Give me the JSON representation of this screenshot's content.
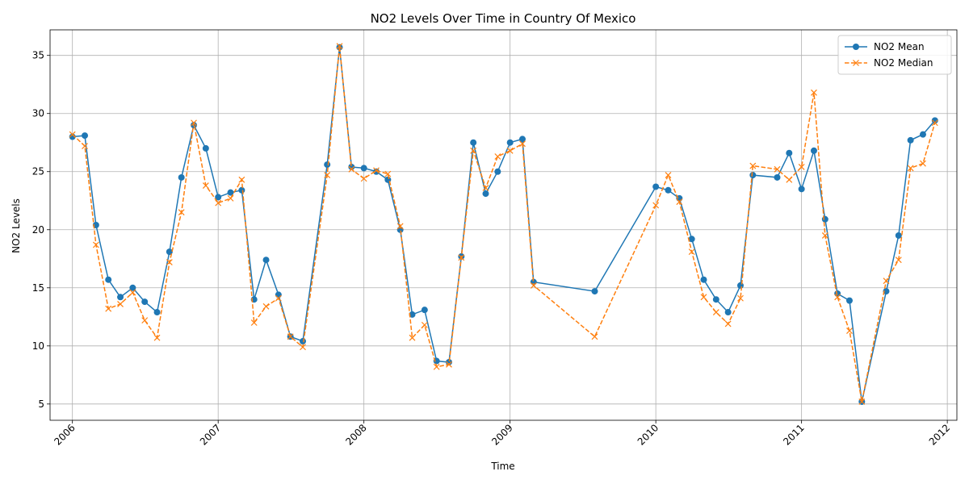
{
  "chart_data": {
    "type": "line",
    "title": "NO2 Levels Over Time in Country Of Mexico",
    "xlabel": "Time",
    "ylabel": "NO2 Levels",
    "xlim": [
      "2005-11-06",
      "2012-01-25"
    ],
    "ylim": [
      3.6,
      37.2
    ],
    "x_ticks": [
      "2006",
      "2007",
      "2008",
      "2009",
      "2010",
      "2011",
      "2012"
    ],
    "y_ticks": [
      5,
      10,
      15,
      20,
      25,
      30,
      35
    ],
    "grid": true,
    "legend_position": "top-right",
    "colors": {
      "mean": "#1f77b4",
      "median": "#ff7f0e"
    },
    "x": [
      "2006-01-01",
      "2006-02-01",
      "2006-03-01",
      "2006-04-01",
      "2006-05-01",
      "2006-06-01",
      "2006-07-01",
      "2006-08-01",
      "2006-09-01",
      "2006-10-01",
      "2006-11-01",
      "2006-12-01",
      "2007-01-01",
      "2007-02-01",
      "2007-03-01",
      "2007-04-01",
      "2007-05-01",
      "2007-06-01",
      "2007-07-01",
      "2007-08-01",
      "2007-10-01",
      "2007-11-01",
      "2007-12-01",
      "2008-01-01",
      "2008-02-01",
      "2008-03-01",
      "2008-04-01",
      "2008-05-01",
      "2008-06-01",
      "2008-07-01",
      "2008-08-01",
      "2008-09-01",
      "2008-10-01",
      "2008-11-01",
      "2008-12-01",
      "2009-01-01",
      "2009-02-01",
      "2009-03-01",
      "2009-08-01",
      "2010-01-01",
      "2010-02-01",
      "2010-03-01",
      "2010-04-01",
      "2010-05-01",
      "2010-06-01",
      "2010-07-01",
      "2010-08-01",
      "2010-09-01",
      "2010-11-01",
      "2010-12-01",
      "2011-01-01",
      "2011-02-01",
      "2011-03-01",
      "2011-04-01",
      "2011-05-01",
      "2011-06-01",
      "2011-08-01",
      "2011-09-01",
      "2011-10-01",
      "2011-11-01",
      "2011-12-01"
    ],
    "series": [
      {
        "name": "NO2 Mean",
        "values": [
          28.0,
          28.1,
          20.4,
          15.7,
          14.2,
          15.0,
          13.8,
          12.9,
          18.1,
          24.5,
          29.0,
          27.0,
          22.8,
          23.2,
          23.4,
          14.0,
          17.4,
          14.4,
          10.8,
          10.4,
          25.6,
          35.7,
          25.4,
          25.3,
          25.0,
          24.3,
          20.0,
          12.7,
          13.1,
          8.7,
          8.6,
          17.7,
          27.5,
          23.1,
          25.0,
          27.5,
          27.8,
          15.5,
          14.7,
          23.7,
          23.4,
          22.7,
          19.2,
          15.7,
          14.0,
          12.9,
          15.2,
          24.7,
          24.5,
          26.6,
          23.5,
          26.8,
          20.9,
          14.5,
          13.9,
          5.2,
          14.7,
          19.5,
          27.7,
          28.2,
          29.4
        ]
      },
      {
        "name": "NO2 Median",
        "values": [
          28.2,
          27.2,
          18.7,
          13.2,
          13.6,
          14.6,
          12.2,
          10.7,
          17.2,
          21.5,
          29.2,
          23.8,
          22.3,
          22.7,
          24.3,
          12.0,
          13.4,
          14.1,
          10.8,
          9.9,
          24.7,
          35.8,
          25.2,
          24.4,
          25.1,
          24.8,
          20.3,
          10.7,
          11.8,
          8.2,
          8.4,
          17.6,
          26.8,
          23.6,
          26.3,
          26.8,
          27.4,
          15.2,
          10.8,
          22.1,
          24.7,
          22.4,
          18.1,
          14.2,
          12.9,
          11.9,
          14.1,
          25.5,
          25.2,
          24.3,
          25.4,
          31.8,
          19.5,
          14.2,
          11.3,
          5.2,
          15.6,
          17.4,
          25.3,
          25.7,
          29.2
        ]
      }
    ]
  }
}
